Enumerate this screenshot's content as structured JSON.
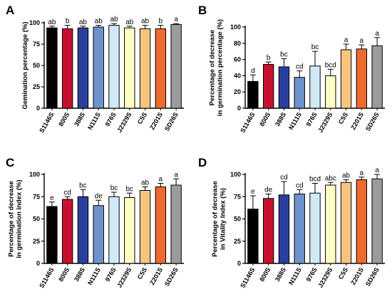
{
  "colors": [
    "#000000",
    "#c8102e",
    "#2a3f9b",
    "#6d93cc",
    "#cfeaf6",
    "#ffffc4",
    "#f7c47e",
    "#ef6a2e",
    "#9b9b9b"
  ],
  "chart_data": [
    {
      "type": "bar",
      "panel": "A",
      "ylabel": "Gemination percentage (%)",
      "categories": [
        "S1146S",
        "800S",
        "388S",
        "N111S",
        "976S",
        "J2329S",
        "C5S",
        "Z201S",
        "SD26S"
      ],
      "values": [
        94,
        93,
        94,
        95,
        97,
        94,
        93,
        93,
        98
      ],
      "errors": [
        2,
        4,
        2,
        2,
        2,
        2,
        4,
        4,
        1
      ],
      "letters": [
        "ab",
        "b",
        "ab",
        "ab",
        "ab",
        "ab",
        "ab",
        "b",
        "a"
      ],
      "ylim": [
        0,
        100
      ],
      "yticks": [
        "0",
        "25",
        "50",
        "75",
        "100"
      ]
    },
    {
      "type": "bar",
      "panel": "B",
      "ylabel": [
        "Percentage of decrease",
        "in germination percentage (%)"
      ],
      "categories": [
        "S1146S",
        "800S",
        "388S",
        "N111S",
        "976S",
        "J2329S",
        "C5S",
        "Z201S",
        "SD26S"
      ],
      "values": [
        33,
        54,
        51,
        38,
        52,
        40,
        72,
        73,
        77
      ],
      "errors": [
        8,
        3,
        10,
        8,
        18,
        8,
        7,
        5,
        10
      ],
      "letters": [
        "d",
        "b",
        "bc",
        "cd",
        "bc",
        "bcd",
        "a",
        "a",
        "a"
      ],
      "ylim": [
        0,
        100
      ],
      "yticks": [
        "0",
        "20",
        "40",
        "60",
        "80",
        "100"
      ]
    },
    {
      "type": "bar",
      "panel": "C",
      "ylabel": [
        "Percentage of decrease",
        "in germination index (%)"
      ],
      "categories": [
        "S1146S",
        "800S",
        "388S",
        "N111S",
        "976S",
        "J2329S",
        "C5S",
        "Z201S",
        "SD26S"
      ],
      "values": [
        64,
        72,
        75,
        65,
        75,
        74,
        82,
        86,
        88
      ],
      "errors": [
        5,
        3,
        8,
        6,
        5,
        5,
        4,
        4,
        7
      ],
      "letters": [
        "e",
        "cd",
        "bc",
        "de",
        "bc",
        "bc",
        "ab",
        "a",
        "a"
      ],
      "ylim": [
        0,
        100
      ],
      "yticks": [
        "0",
        "25",
        "50",
        "75",
        "100"
      ]
    },
    {
      "type": "bar",
      "panel": "D",
      "ylabel": [
        "Percentage of decrease",
        "in Vitality Index (%)"
      ],
      "categories": [
        "S1146S",
        "800S",
        "388S",
        "N111S",
        "976S",
        "J2329S",
        "C5S",
        "Z201S",
        "SD26S"
      ],
      "values": [
        61,
        73,
        77,
        78,
        79,
        88,
        91,
        94,
        95
      ],
      "errors": [
        15,
        5,
        15,
        5,
        11,
        3,
        3,
        3,
        5
      ],
      "letters": [
        "e",
        "de",
        "cd",
        "cd",
        "bcd",
        "abc",
        "ab",
        "a",
        "a"
      ],
      "ylim": [
        0,
        100
      ],
      "yticks": [
        "0",
        "25",
        "50",
        "75",
        "100"
      ]
    }
  ]
}
